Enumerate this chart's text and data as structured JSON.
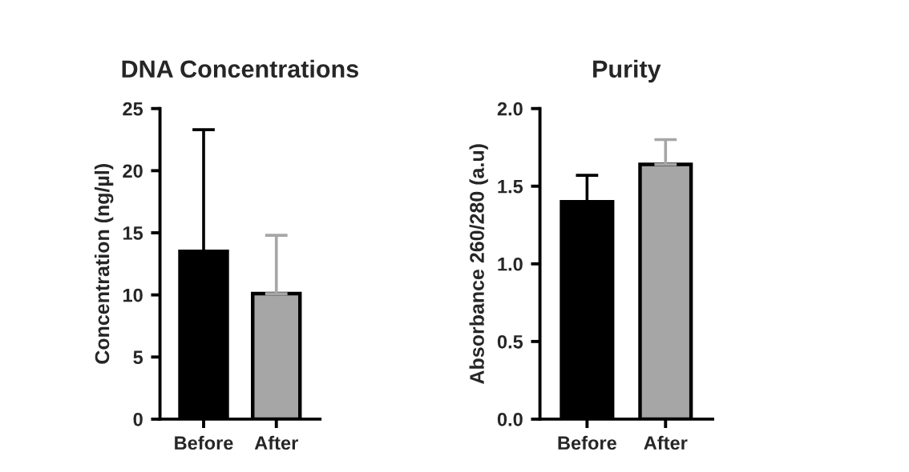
{
  "chart_data": [
    {
      "type": "bar",
      "title": "DNA Concentrations",
      "ylabel": "Concentration (ng/µl)",
      "categories": [
        "Before",
        "After"
      ],
      "values": [
        13.5,
        10.1
      ],
      "colors": [
        "#000000",
        "#a6a6a6"
      ],
      "errors": [
        [
          13.5,
          23.3
        ],
        [
          10.1,
          14.8
        ]
      ],
      "ylim": [
        0,
        25
      ],
      "yticks": [
        0,
        5,
        10,
        15,
        20,
        25
      ],
      "grid": false,
      "legend": false
    },
    {
      "type": "bar",
      "title": "Purity",
      "ylabel": "Absorbance 260/280 (a.u)",
      "categories": [
        "Before",
        "After"
      ],
      "values": [
        1.4,
        1.64
      ],
      "colors": [
        "#000000",
        "#a6a6a6"
      ],
      "errors": [
        [
          1.4,
          1.57
        ],
        [
          1.64,
          1.8
        ]
      ],
      "ylim": [
        0,
        2.0
      ],
      "yticks": [
        {
          "value": 0,
          "label": "0.0"
        },
        {
          "value": 0.5,
          "label": "0.5"
        },
        {
          "value": 1.0,
          "label": "1.0"
        },
        {
          "value": 1.5,
          "label": "1.5"
        },
        {
          "value": 2.0,
          "label": "2.0"
        }
      ],
      "grid": false,
      "legend": false
    }
  ]
}
